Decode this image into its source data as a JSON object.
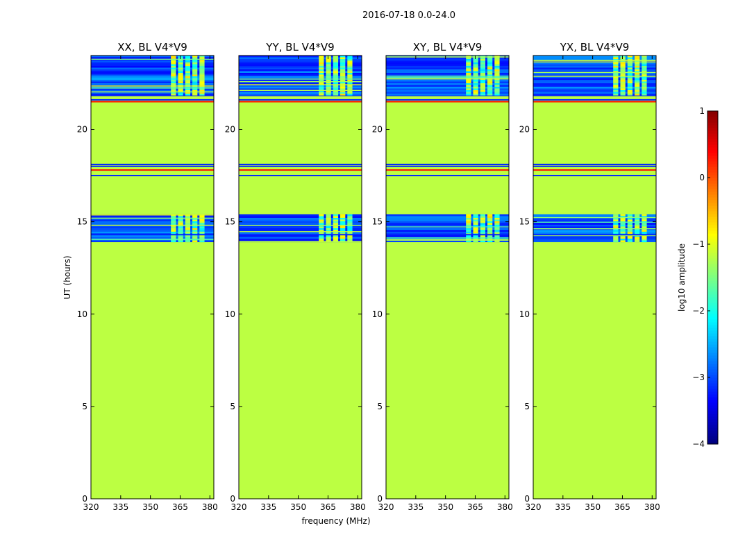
{
  "chart_data": {
    "type": "heatmap",
    "suptitle": "2016-07-18 0.0-24.0",
    "xlabel": "frequency (MHz)",
    "ylabel": "UT (hours)",
    "xlim": [
      320,
      382
    ],
    "ylim": [
      0,
      24
    ],
    "xticks": [
      "320",
      "335",
      "350",
      "365",
      "380"
    ],
    "yticks": [
      "0",
      "5",
      "10",
      "15",
      "20"
    ],
    "panels": [
      {
        "title": "XX, BL V4*V9",
        "noisy_rfi_band_mhz": [
          360,
          378
        ]
      },
      {
        "title": "YY, BL V4*V9",
        "noisy_rfi_band_mhz": [
          360,
          378
        ]
      },
      {
        "title": "XY, BL V4*V9",
        "noisy_rfi_band_mhz": [
          360,
          378
        ]
      },
      {
        "title": "YX, BL V4*V9",
        "noisy_rfi_band_mhz": [
          360,
          378
        ]
      }
    ],
    "fill_log10_amplitude": -1.2,
    "data_segments_ut": [
      {
        "start": 13.9,
        "end": 15.4
      },
      {
        "start": 21.8,
        "end": 24.0
      }
    ],
    "rfi_lines_ut": [
      14.3,
      17.5,
      17.8,
      18.0,
      18.1,
      21.5,
      21.6
    ],
    "colorbar": {
      "label": "log10 amplitude",
      "range": [
        -4,
        1
      ],
      "ticks": [
        "−4",
        "−3",
        "−2",
        "−1",
        "0",
        "1"
      ],
      "colors": [
        "#00007f",
        "#0000ff",
        "#007fff",
        "#00ffff",
        "#7fff7f",
        "#ffff00",
        "#ff7f00",
        "#ff0000",
        "#7f0000"
      ]
    }
  }
}
